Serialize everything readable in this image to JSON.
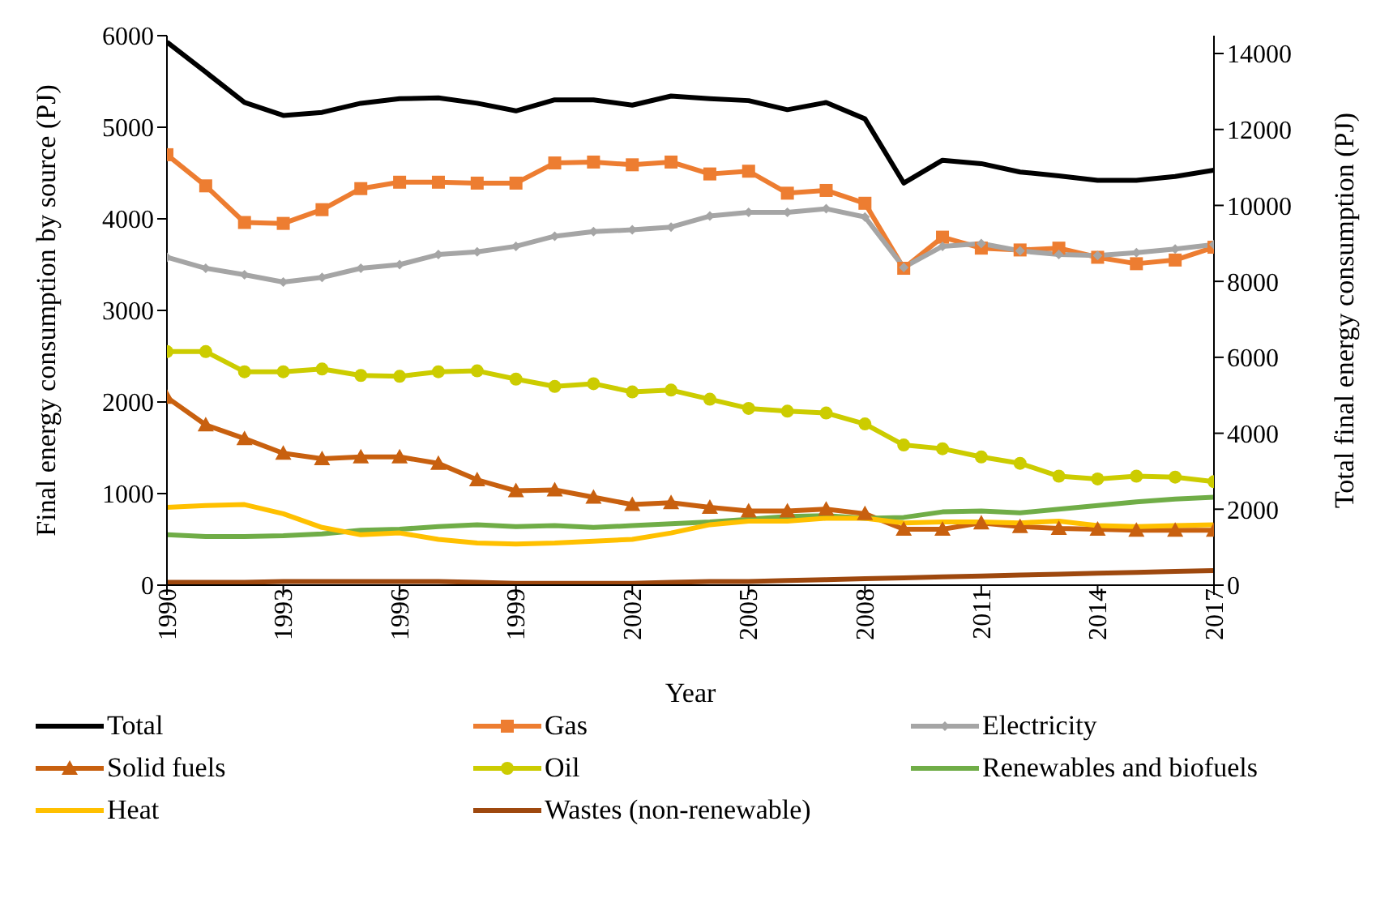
{
  "chart_data": {
    "type": "line",
    "xlabel": "Year",
    "ylabel": "Final energy consumption by source (PJ)",
    "y2label": "Total  final energy consumption (PJ)",
    "x": [
      1990,
      1991,
      1992,
      1993,
      1994,
      1995,
      1996,
      1997,
      1998,
      1999,
      2000,
      2001,
      2002,
      2003,
      2004,
      2005,
      2006,
      2007,
      2008,
      2009,
      2010,
      2011,
      2012,
      2013,
      2014,
      2015,
      2016,
      2017
    ],
    "xlim": [
      1990,
      2017
    ],
    "xticks": [
      1990,
      1993,
      1996,
      1999,
      2002,
      2005,
      2008,
      2011,
      2014,
      2017
    ],
    "ylim": [
      0,
      6000
    ],
    "yticks": [
      0,
      1000,
      2000,
      3000,
      4000,
      5000,
      6000
    ],
    "y2lim": [
      0,
      14470
    ],
    "y2ticks": [
      0,
      2000,
      4000,
      6000,
      8000,
      10000,
      12000,
      14000
    ],
    "grid": false,
    "legend": "bottom",
    "series": [
      {
        "name": "Total",
        "color": "#000000",
        "axis": "y2",
        "marker": "none",
        "values": [
          14300,
          13510,
          12710,
          12370,
          12450,
          12690,
          12810,
          12830,
          12690,
          12490,
          12780,
          12780,
          12640,
          12880,
          12810,
          12760,
          12520,
          12710,
          12280,
          10590,
          11190,
          11100,
          10880,
          10780,
          10660,
          10660,
          10760,
          10930
        ]
      },
      {
        "name": "Gas",
        "color": "#ed7d31",
        "marker": "square",
        "values": [
          4700,
          4360,
          3960,
          3950,
          4100,
          4330,
          4400,
          4400,
          4390,
          4390,
          4610,
          4620,
          4590,
          4620,
          4490,
          4520,
          4280,
          4310,
          4170,
          3460,
          3800,
          3680,
          3660,
          3680,
          3580,
          3510,
          3550,
          3690
        ]
      },
      {
        "name": "Electricity",
        "color": "#a5a5a5",
        "marker": "diamond",
        "values": [
          3580,
          3460,
          3390,
          3310,
          3360,
          3460,
          3500,
          3610,
          3640,
          3700,
          3810,
          3860,
          3880,
          3910,
          4030,
          4070,
          4070,
          4110,
          4020,
          3470,
          3700,
          3730,
          3650,
          3610,
          3600,
          3630,
          3670,
          3720
        ]
      },
      {
        "name": "Solid fuels",
        "color": "#c8600f",
        "marker": "triangle",
        "values": [
          2050,
          1750,
          1600,
          1440,
          1380,
          1400,
          1400,
          1330,
          1150,
          1030,
          1040,
          960,
          880,
          900,
          850,
          810,
          810,
          830,
          780,
          610,
          610,
          680,
          640,
          620,
          610,
          600,
          600,
          600
        ]
      },
      {
        "name": "Oil",
        "color": "#cccc00",
        "marker": "circle",
        "values": [
          2550,
          2550,
          2330,
          2330,
          2360,
          2290,
          2280,
          2330,
          2340,
          2250,
          2170,
          2200,
          2110,
          2130,
          2030,
          1930,
          1900,
          1880,
          1760,
          1530,
          1490,
          1400,
          1330,
          1190,
          1160,
          1190,
          1180,
          1130
        ]
      },
      {
        "name": "Renewables and biofuels",
        "color": "#70ad47",
        "marker": "none",
        "values": [
          550,
          530,
          530,
          540,
          560,
          600,
          610,
          640,
          660,
          640,
          650,
          630,
          650,
          670,
          690,
          720,
          750,
          760,
          730,
          740,
          800,
          810,
          790,
          830,
          870,
          910,
          940,
          960
        ]
      },
      {
        "name": "Heat",
        "color": "#ffc000",
        "marker": "none",
        "values": [
          850,
          870,
          880,
          780,
          630,
          550,
          570,
          500,
          460,
          450,
          460,
          480,
          500,
          570,
          660,
          700,
          700,
          730,
          730,
          680,
          690,
          690,
          680,
          700,
          650,
          640,
          650,
          660
        ]
      },
      {
        "name": "Wastes (non-renewable)",
        "color": "#9e480e",
        "marker": "none",
        "values": [
          30,
          30,
          30,
          40,
          40,
          40,
          40,
          40,
          30,
          20,
          20,
          20,
          20,
          30,
          40,
          40,
          50,
          60,
          70,
          80,
          90,
          100,
          110,
          120,
          130,
          140,
          150,
          160
        ]
      }
    ]
  }
}
